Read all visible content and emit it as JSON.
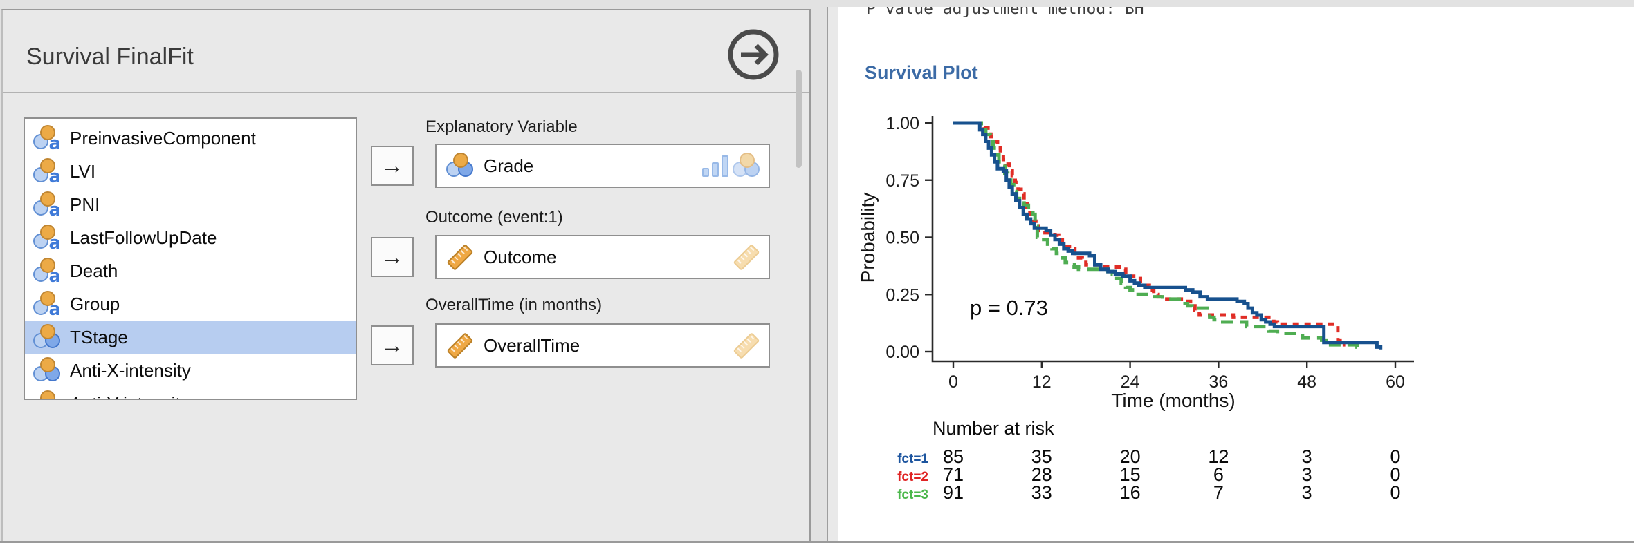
{
  "options_panel": {
    "title": "Survival FinalFit",
    "variable_list": {
      "items": [
        {
          "name": "PreinvasiveComponent",
          "type": "nominal-text",
          "selected": false
        },
        {
          "name": "LVI",
          "type": "nominal-text",
          "selected": false
        },
        {
          "name": "PNI",
          "type": "nominal-text",
          "selected": false
        },
        {
          "name": "LastFollowUpDate",
          "type": "nominal-text",
          "selected": false
        },
        {
          "name": "Death",
          "type": "nominal-text",
          "selected": false
        },
        {
          "name": "Group",
          "type": "nominal-text",
          "selected": false
        },
        {
          "name": "TStage",
          "type": "nominal",
          "selected": true
        },
        {
          "name": "Anti-X-intensity",
          "type": "nominal",
          "selected": false
        },
        {
          "name": "Anti-Y-intensity",
          "type": "nominal",
          "selected": false
        }
      ]
    },
    "fields": [
      {
        "label": "Explanatory Variable",
        "value": "Grade",
        "value_type": "nominal"
      },
      {
        "label": "Outcome (event:1)",
        "value": "Outcome",
        "value_type": "continuous"
      },
      {
        "label": "OverallTime (in months)",
        "value": "OverallTime",
        "value_type": "continuous"
      }
    ]
  },
  "results_panel": {
    "clipped_top_line": "P value adjustment method: BH",
    "section_heading": "Survival Plot"
  },
  "chart_data": {
    "type": "line",
    "subtype": "kaplan-meier-step",
    "title": "Survival Plot",
    "xlabel": "Time (months)",
    "ylabel": "Probability",
    "xlim": [
      0,
      63
    ],
    "ylim": [
      0,
      1
    ],
    "grid": false,
    "legend_position": "none",
    "xticks": [
      0,
      12,
      24,
      36,
      48,
      60
    ],
    "yticks": [
      {
        "value": 1.0,
        "label": "1.00"
      },
      {
        "value": 0.75,
        "label": "0.75"
      },
      {
        "value": 0.5,
        "label": "0.50"
      },
      {
        "value": 0.25,
        "label": "0.25"
      },
      {
        "value": 0.0,
        "label": "0.00"
      }
    ],
    "annotation": {
      "text": "p = 0.73",
      "x": 2.5,
      "y": 0.18
    },
    "series": [
      {
        "name": "fct=1",
        "color": "#17518e",
        "dash": "",
        "points": [
          [
            0,
            1
          ],
          [
            3,
            1
          ],
          [
            3.6,
            0.97
          ],
          [
            4,
            0.95
          ],
          [
            4.4,
            0.92
          ],
          [
            4.8,
            0.89
          ],
          [
            5.2,
            0.86
          ],
          [
            5.6,
            0.83
          ],
          [
            6,
            0.8
          ],
          [
            6.8,
            0.79
          ],
          [
            7.2,
            0.75
          ],
          [
            7.6,
            0.72
          ],
          [
            8,
            0.69
          ],
          [
            8.5,
            0.66
          ],
          [
            9,
            0.63
          ],
          [
            9.5,
            0.6
          ],
          [
            10,
            0.58
          ],
          [
            10.5,
            0.56
          ],
          [
            11,
            0.54
          ],
          [
            12.6,
            0.53
          ],
          [
            13.2,
            0.51
          ],
          [
            13.8,
            0.49
          ],
          [
            14.4,
            0.47
          ],
          [
            15,
            0.45
          ],
          [
            15.6,
            0.44
          ],
          [
            16.2,
            0.43
          ],
          [
            18.5,
            0.42
          ],
          [
            19.2,
            0.38
          ],
          [
            20,
            0.36
          ],
          [
            21,
            0.35
          ],
          [
            22,
            0.34
          ],
          [
            23,
            0.33
          ],
          [
            24,
            0.31
          ],
          [
            24.6,
            0.3
          ],
          [
            25.2,
            0.29
          ],
          [
            26,
            0.28
          ],
          [
            31.5,
            0.27
          ],
          [
            32.5,
            0.26
          ],
          [
            33.5,
            0.24
          ],
          [
            34.5,
            0.23
          ],
          [
            38.5,
            0.22
          ],
          [
            39.5,
            0.21
          ],
          [
            40,
            0.19
          ],
          [
            40.6,
            0.17
          ],
          [
            41.2,
            0.16
          ],
          [
            41.8,
            0.14
          ],
          [
            42.4,
            0.13
          ],
          [
            43,
            0.12
          ],
          [
            43.6,
            0.11
          ],
          [
            50.3,
            0.04
          ],
          [
            57.5,
            0.02
          ],
          [
            58,
            0.01
          ]
        ]
      },
      {
        "name": "fct=2",
        "color": "#e02d26",
        "dash": "9 8",
        "points": [
          [
            0,
            1
          ],
          [
            3.8,
            1
          ],
          [
            4.2,
            0.98
          ],
          [
            4.7,
            0.96
          ],
          [
            5.1,
            0.94
          ],
          [
            5.5,
            0.92
          ],
          [
            6,
            0.89
          ],
          [
            6.4,
            0.87
          ],
          [
            6.8,
            0.84
          ],
          [
            7.2,
            0.82
          ],
          [
            7.6,
            0.79
          ],
          [
            8,
            0.77
          ],
          [
            8.4,
            0.74
          ],
          [
            8.8,
            0.71
          ],
          [
            9.2,
            0.69
          ],
          [
            9.6,
            0.66
          ],
          [
            10,
            0.63
          ],
          [
            10.4,
            0.6
          ],
          [
            10.8,
            0.57
          ],
          [
            11.2,
            0.55
          ],
          [
            11.6,
            0.53
          ],
          [
            12,
            0.52
          ],
          [
            13.8,
            0.51
          ],
          [
            14.3,
            0.49
          ],
          [
            14.8,
            0.48
          ],
          [
            15.4,
            0.46
          ],
          [
            16,
            0.45
          ],
          [
            16.5,
            0.43
          ],
          [
            17,
            0.41
          ],
          [
            17.5,
            0.4
          ],
          [
            18,
            0.38
          ],
          [
            20,
            0.37
          ],
          [
            22.8,
            0.36
          ],
          [
            23.4,
            0.34
          ],
          [
            24,
            0.33
          ],
          [
            24.8,
            0.32
          ],
          [
            25.4,
            0.3
          ],
          [
            26,
            0.29
          ],
          [
            26.6,
            0.27
          ],
          [
            27.2,
            0.25
          ],
          [
            27.8,
            0.24
          ],
          [
            28.4,
            0.23
          ],
          [
            31.5,
            0.22
          ],
          [
            32.2,
            0.2
          ],
          [
            32.8,
            0.18
          ],
          [
            33.4,
            0.16
          ],
          [
            38,
            0.15
          ],
          [
            43.5,
            0.13
          ],
          [
            44,
            0.12
          ],
          [
            51.8,
            0.12
          ],
          [
            52.2,
            0.05
          ],
          [
            52.8,
            0.03
          ],
          [
            53.2,
            0.03
          ]
        ]
      },
      {
        "name": "fct=3",
        "color": "#4fad52",
        "dash": "17 10",
        "points": [
          [
            0,
            1
          ],
          [
            3.2,
            1
          ],
          [
            3.8,
            0.98
          ],
          [
            4.4,
            0.95
          ],
          [
            5,
            0.92
          ],
          [
            5.4,
            0.89
          ],
          [
            5.8,
            0.86
          ],
          [
            6.2,
            0.83
          ],
          [
            6.6,
            0.81
          ],
          [
            7,
            0.78
          ],
          [
            7.4,
            0.75
          ],
          [
            7.8,
            0.73
          ],
          [
            8.2,
            0.7
          ],
          [
            8.6,
            0.67
          ],
          [
            9,
            0.65
          ],
          [
            9.6,
            0.64
          ],
          [
            10.2,
            0.62
          ],
          [
            10.8,
            0.6
          ],
          [
            11.1,
            0.55
          ],
          [
            11.4,
            0.5
          ],
          [
            12,
            0.49
          ],
          [
            12.8,
            0.47
          ],
          [
            13.4,
            0.45
          ],
          [
            14,
            0.43
          ],
          [
            14.6,
            0.41
          ],
          [
            15.2,
            0.39
          ],
          [
            15.8,
            0.38
          ],
          [
            16.4,
            0.37
          ],
          [
            17,
            0.36
          ],
          [
            21,
            0.35
          ],
          [
            21.6,
            0.34
          ],
          [
            22.2,
            0.32
          ],
          [
            22.8,
            0.3
          ],
          [
            23.4,
            0.28
          ],
          [
            24,
            0.27
          ],
          [
            24.8,
            0.25
          ],
          [
            27,
            0.24
          ],
          [
            28.4,
            0.23
          ],
          [
            31.2,
            0.21
          ],
          [
            31.8,
            0.2
          ],
          [
            32.4,
            0.19
          ],
          [
            34.8,
            0.15
          ],
          [
            35.4,
            0.14
          ],
          [
            36,
            0.13
          ],
          [
            39.8,
            0.11
          ],
          [
            42.8,
            0.09
          ],
          [
            44,
            0.08
          ],
          [
            46.8,
            0.07
          ],
          [
            47.4,
            0.06
          ],
          [
            50,
            0.05
          ],
          [
            50.6,
            0.03
          ],
          [
            54.8,
            0.02
          ],
          [
            55.4,
            0.01
          ]
        ]
      }
    ],
    "risk_table": {
      "title": "Number at risk",
      "times": [
        0,
        12,
        24,
        36,
        48,
        60
      ],
      "rows": [
        {
          "label": "fct=1",
          "color": "#1d559f",
          "values": [
            85,
            35,
            20,
            12,
            3,
            0
          ]
        },
        {
          "label": "fct=2",
          "color": "#e02424",
          "values": [
            71,
            28,
            15,
            6,
            3,
            0
          ]
        },
        {
          "label": "fct=3",
          "color": "#4cb84c",
          "values": [
            91,
            33,
            16,
            7,
            3,
            0
          ]
        }
      ]
    }
  }
}
